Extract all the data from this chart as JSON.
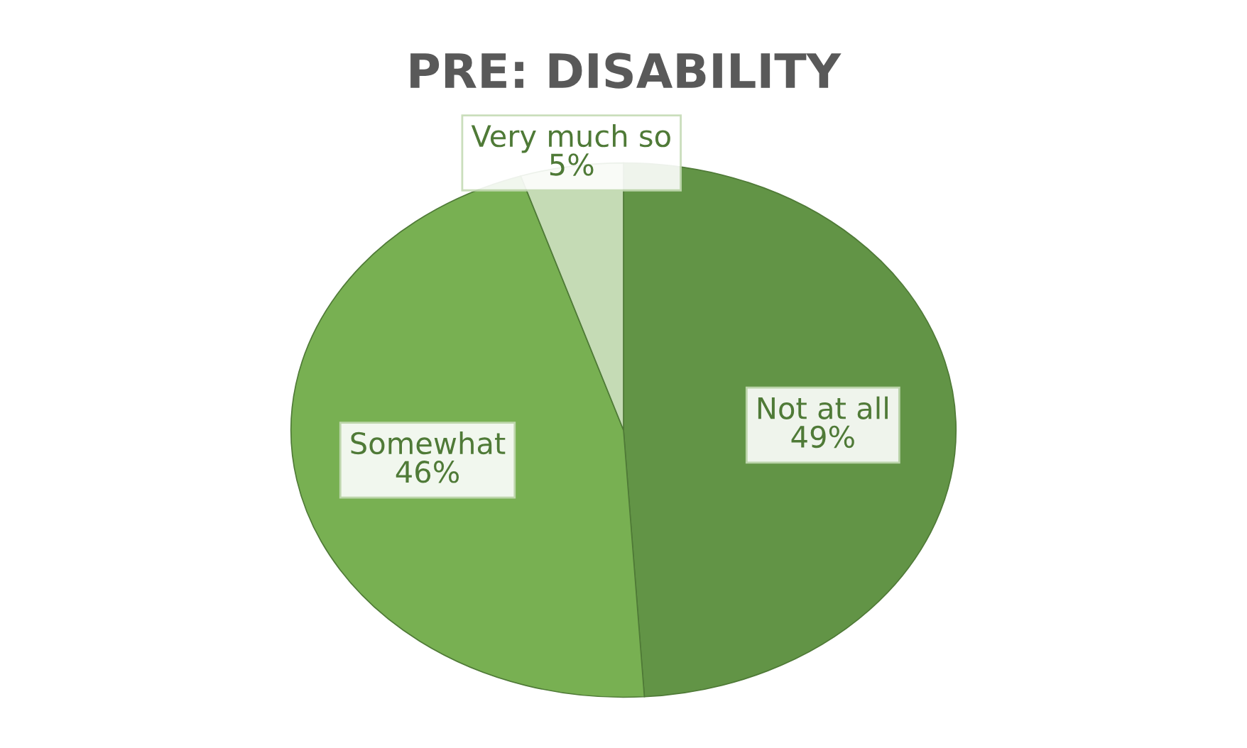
{
  "chart_data": {
    "type": "pie",
    "title": "PRE: DISABILITY",
    "categories": [
      "Not at all",
      "Somewhat",
      "Very much so"
    ],
    "values": [
      49,
      46,
      5
    ],
    "colors": [
      "#629446",
      "#78b052",
      "#c5dbb5"
    ],
    "value_labels": [
      "49%",
      "46%",
      "5%"
    ]
  }
}
